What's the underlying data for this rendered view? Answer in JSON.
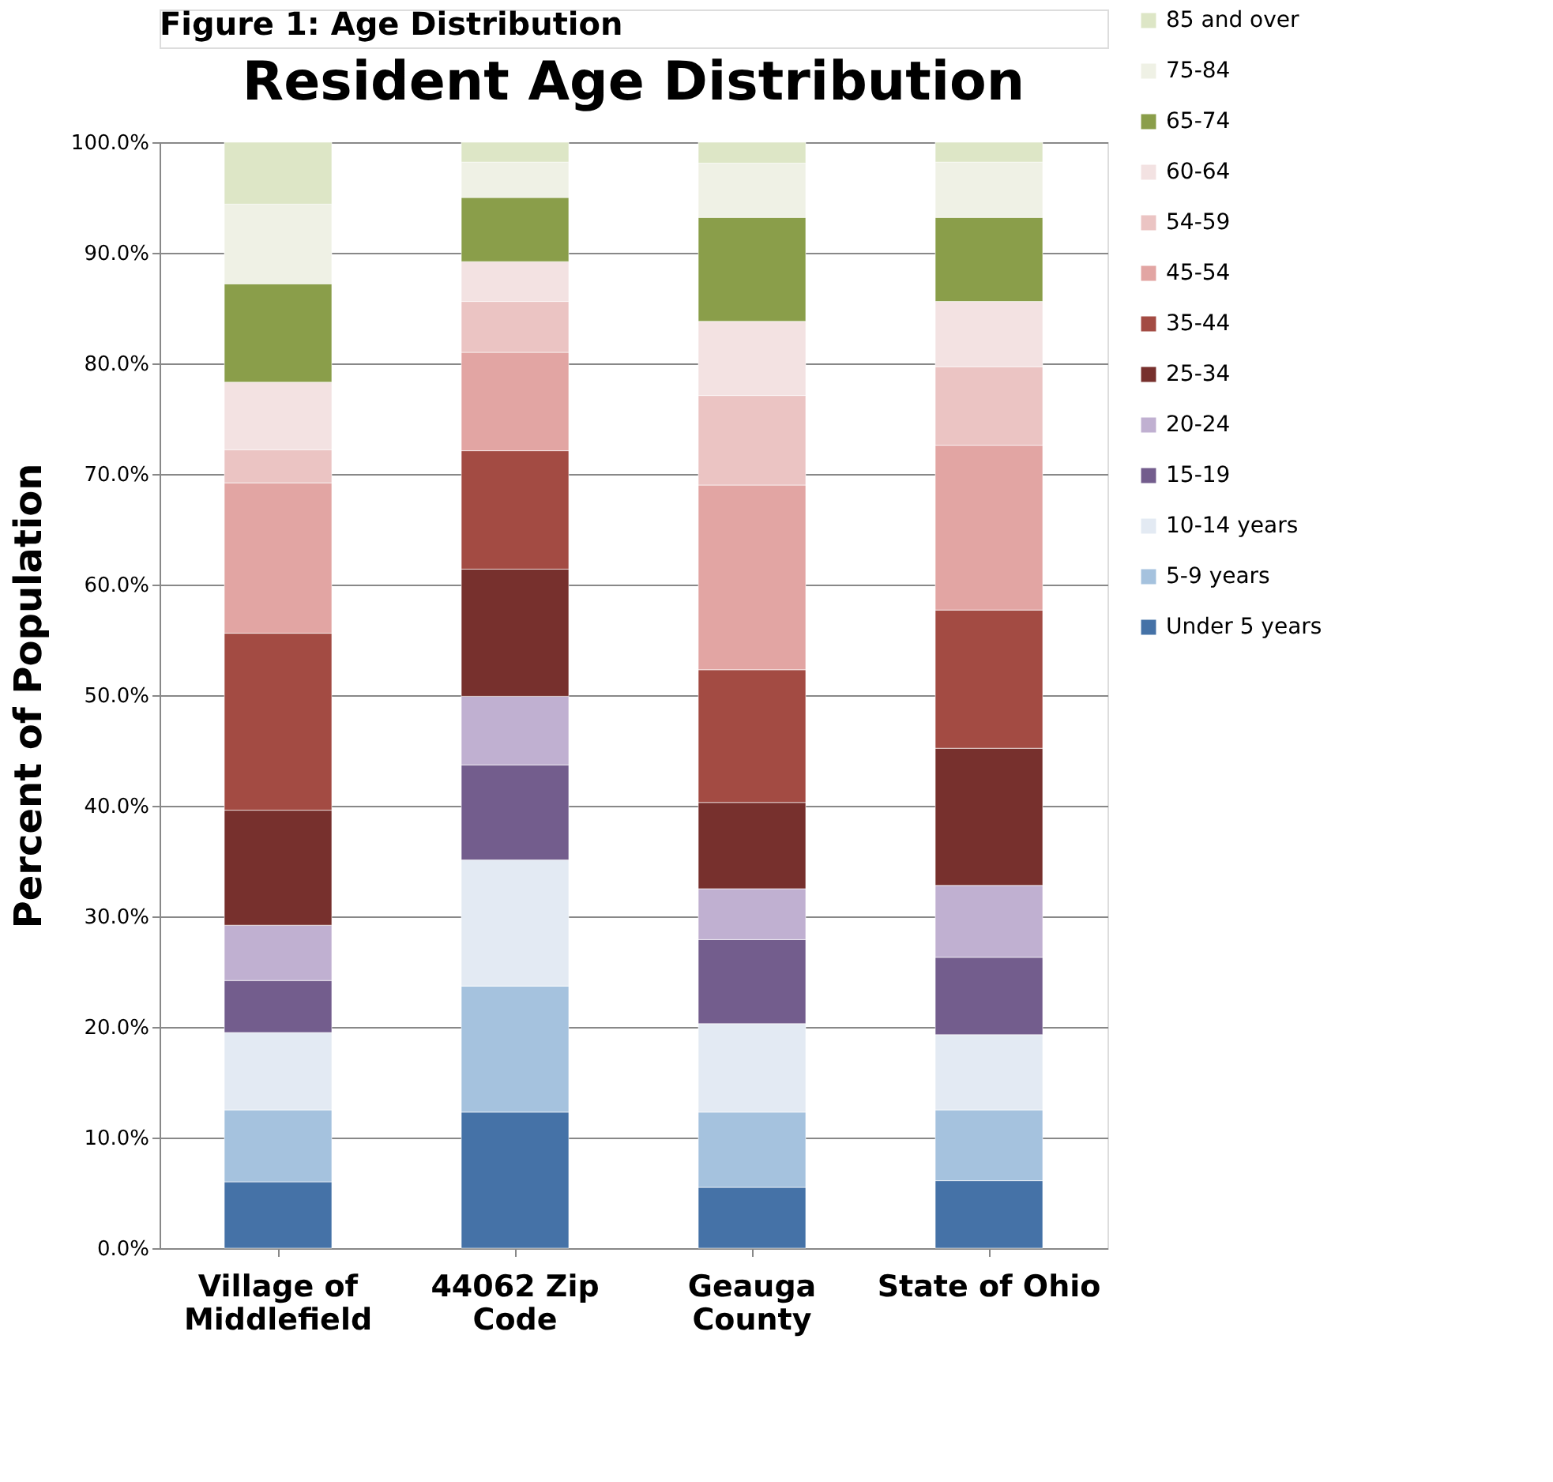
{
  "chart_data": {
    "type": "bar",
    "stacked": true,
    "title": "Resident Age Distribution",
    "ylabel": "Percent of Population",
    "annotations": [
      "Figure 1: Age Distribution"
    ],
    "categories": [
      "Village of\nMiddlefield",
      "44062 Zip\nCode",
      "Geauga\nCounty",
      "State of Ohio"
    ],
    "ylim": [
      0,
      100
    ],
    "yticks": [
      {
        "value": 0,
        "label": "0.0%"
      },
      {
        "value": 10,
        "label": "10.0%"
      },
      {
        "value": 20,
        "label": "20.0%"
      },
      {
        "value": 30,
        "label": "30.0%"
      },
      {
        "value": 40,
        "label": "40.0%"
      },
      {
        "value": 50,
        "label": "50.0%"
      },
      {
        "value": 60,
        "label": "60.0%"
      },
      {
        "value": 70,
        "label": "70.0%"
      },
      {
        "value": 80,
        "label": "80.0%"
      },
      {
        "value": 90,
        "label": "90.0%"
      },
      {
        "value": 100,
        "label": "100.0%"
      }
    ],
    "grid": "y",
    "legend": "right",
    "series": [
      {
        "name": "Under 5 years",
        "color": "#4572a7",
        "values": [
          6.0,
          12.3,
          5.5,
          6.1
        ]
      },
      {
        "name": "5-9 years",
        "color": "#a5c2de",
        "values": [
          6.5,
          11.4,
          6.8,
          6.4
        ]
      },
      {
        "name": "10-14 years",
        "color": "#e3eaf3",
        "values": [
          7.0,
          11.4,
          8.0,
          6.8
        ]
      },
      {
        "name": "15-19",
        "color": "#735d8d",
        "values": [
          4.7,
          8.6,
          7.6,
          7.0
        ]
      },
      {
        "name": "20-24",
        "color": "#c0b0d1",
        "values": [
          5.0,
          6.2,
          4.6,
          6.5
        ]
      },
      {
        "name": "25-34",
        "color": "#77302d",
        "values": [
          10.4,
          11.5,
          7.8,
          12.4
        ]
      },
      {
        "name": "35-44",
        "color": "#a34b43",
        "values": [
          16.0,
          10.7,
          12.0,
          12.5
        ]
      },
      {
        "name": "45-54",
        "color": "#e2a5a3",
        "values": [
          13.6,
          8.9,
          16.7,
          14.9
        ]
      },
      {
        "name": "54-59",
        "color": "#ebc4c3",
        "values": [
          3.0,
          4.6,
          8.1,
          7.1
        ]
      },
      {
        "name": "60-64",
        "color": "#f3e2e2",
        "values": [
          6.1,
          3.6,
          6.7,
          5.9
        ]
      },
      {
        "name": "65-74",
        "color": "#8a9e4a",
        "values": [
          8.9,
          5.8,
          9.4,
          7.6
        ]
      },
      {
        "name": "75-84",
        "color": "#eff1e5",
        "values": [
          7.2,
          3.2,
          4.9,
          5.0
        ]
      },
      {
        "name": "85 and over",
        "color": "#dde6c6",
        "values": [
          5.6,
          1.8,
          1.9,
          1.8
        ]
      }
    ]
  }
}
